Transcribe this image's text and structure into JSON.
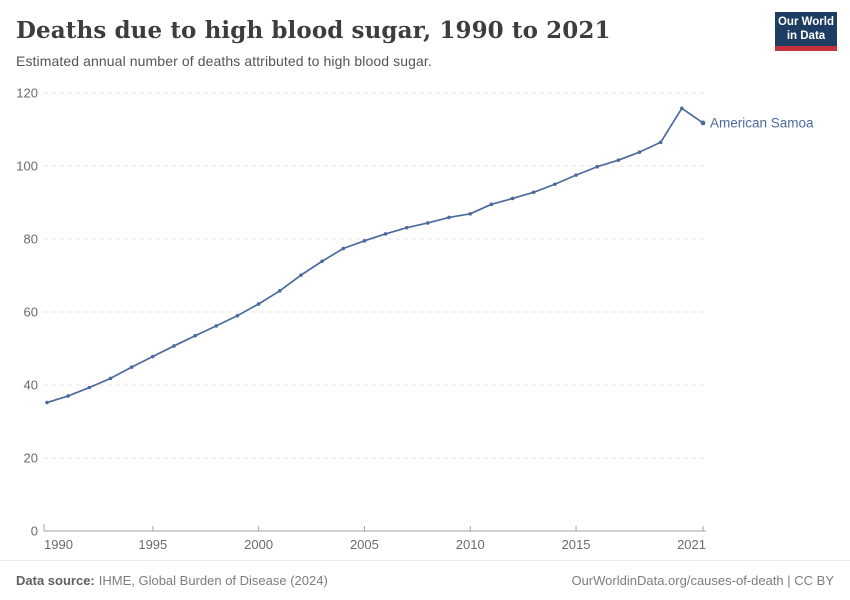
{
  "header": {
    "title": "Deaths due to high blood sugar, 1990 to 2021",
    "subtitle": "Estimated annual number of deaths attributed to high blood sugar."
  },
  "logo": {
    "line1": "Our World",
    "line2": "in Data",
    "background_color": "#1d3d63",
    "bar_color": "#c5303c"
  },
  "chart_data": {
    "type": "line",
    "title": "Deaths due to high blood sugar, 1990 to 2021",
    "subtitle": "Estimated annual number of deaths attributed to high blood sugar.",
    "xlabel": "",
    "ylabel": "",
    "xlim": [
      1990,
      2021
    ],
    "ylim": [
      0,
      120
    ],
    "xticks": [
      1990,
      1995,
      2000,
      2005,
      2010,
      2015,
      2021
    ],
    "yticks": [
      0,
      20,
      40,
      60,
      80,
      100,
      120
    ],
    "grid": "horizontal-dashed",
    "legend_position": "end-of-line-label",
    "series": [
      {
        "name": "American Samoa",
        "color": "#4c6a9c",
        "x": [
          1990,
          1991,
          1992,
          1993,
          1994,
          1995,
          1996,
          1997,
          1998,
          1999,
          2000,
          2001,
          2002,
          2003,
          2004,
          2005,
          2006,
          2007,
          2008,
          2009,
          2010,
          2011,
          2012,
          2013,
          2014,
          2015,
          2016,
          2017,
          2018,
          2019,
          2020,
          2021
        ],
        "values": [
          35.2,
          37.0,
          39.3,
          41.8,
          44.9,
          47.8,
          50.7,
          53.5,
          56.2,
          59.0,
          62.2,
          65.8,
          70.1,
          73.9,
          77.4,
          79.5,
          81.4,
          83.1,
          84.4,
          85.9,
          86.9,
          89.5,
          91.1,
          92.8,
          95.0,
          97.5,
          99.8,
          101.6,
          103.8,
          106.5,
          115.8,
          111.8
        ]
      }
    ],
    "colors": {
      "gridline": "#e2e2e2",
      "axis": "#a3a3a3",
      "tick_label": "#6b6b6b"
    }
  },
  "footer": {
    "source_label": "Data source:",
    "source_text": "IHME, Global Burden of Disease (2024)",
    "link_text": "OurWorldinData.org/causes-of-death | CC BY"
  }
}
